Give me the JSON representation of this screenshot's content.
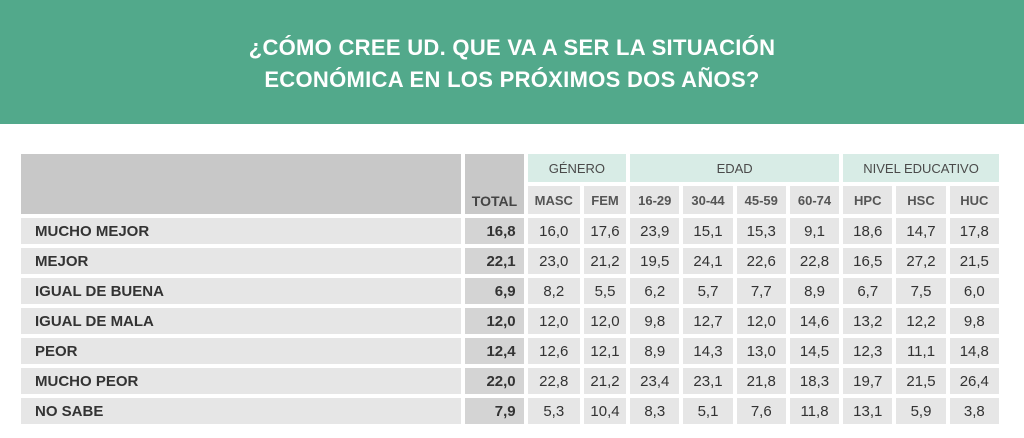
{
  "title": {
    "line1": "¿CÓMO CREE UD. QUE VA A SER LA SITUACIÓN",
    "line2": "ECONÓMICA EN LOS PRÓXIMOS DOS AÑOS?"
  },
  "groups": {
    "genero": "GÉNERO",
    "edad": "EDAD",
    "nivel": "NIVEL EDUCATIVO"
  },
  "columns": {
    "total": "TOTAL",
    "masc": "MASC",
    "fem": "FEM",
    "e1": "16-29",
    "e2": "30-44",
    "e3": "45-59",
    "e4": "60-74",
    "hpc": "HPC",
    "hsc": "HSC",
    "huc": "HUC"
  },
  "rows": [
    {
      "label": "MUCHO MEJOR",
      "total": "16,8",
      "masc": "16,0",
      "fem": "17,6",
      "e1": "23,9",
      "e2": "15,1",
      "e3": "15,3",
      "e4": "9,1",
      "hpc": "18,6",
      "hsc": "14,7",
      "huc": "17,8"
    },
    {
      "label": "MEJOR",
      "total": "22,1",
      "masc": "23,0",
      "fem": "21,2",
      "e1": "19,5",
      "e2": "24,1",
      "e3": "22,6",
      "e4": "22,8",
      "hpc": "16,5",
      "hsc": "27,2",
      "huc": "21,5"
    },
    {
      "label": "IGUAL DE BUENA",
      "total": "6,9",
      "masc": "8,2",
      "fem": "5,5",
      "e1": "6,2",
      "e2": "5,7",
      "e3": "7,7",
      "e4": "8,9",
      "hpc": "6,7",
      "hsc": "7,5",
      "huc": "6,0"
    },
    {
      "label": "IGUAL DE MALA",
      "total": "12,0",
      "masc": "12,0",
      "fem": "12,0",
      "e1": "9,8",
      "e2": "12,7",
      "e3": "12,0",
      "e4": "14,6",
      "hpc": "13,2",
      "hsc": "12,2",
      "huc": "9,8"
    },
    {
      "label": "PEOR",
      "total": "12,4",
      "masc": "12,6",
      "fem": "12,1",
      "e1": "8,9",
      "e2": "14,3",
      "e3": "13,0",
      "e4": "14,5",
      "hpc": "12,3",
      "hsc": "11,1",
      "huc": "14,8"
    },
    {
      "label": "MUCHO PEOR",
      "total": "22,0",
      "masc": "22,8",
      "fem": "21,2",
      "e1": "23,4",
      "e2": "23,1",
      "e3": "21,8",
      "e4": "18,3",
      "hpc": "19,7",
      "hsc": "21,5",
      "huc": "26,4"
    },
    {
      "label": "NO SABE",
      "total": "7,9",
      "masc": "5,3",
      "fem": "10,4",
      "e1": "8,3",
      "e2": "5,1",
      "e3": "7,6",
      "e4": "11,8",
      "hpc": "13,1",
      "hsc": "5,9",
      "huc": "3,8"
    }
  ],
  "colors": {
    "banner": "#52a98b",
    "group_header": "#d8ece6",
    "row_fill": "#e6e6e6",
    "header_fill": "#c8c8c8"
  }
}
